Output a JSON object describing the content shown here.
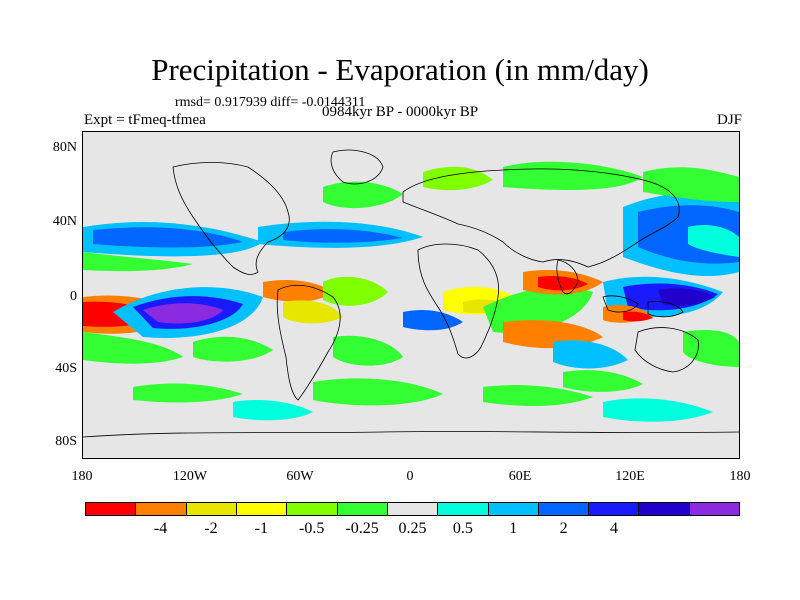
{
  "title": "Precipitation - Evaporation (in mm/day)",
  "stats": "rmsd= 0.917939 diff= -0.0144311",
  "expt": "Expt = tFmeq-tfmea",
  "period": "0984kyr BP - 0000kyr BP",
  "season": "DJF",
  "lat_labels": [
    "80N",
    "40N",
    "0",
    "40S",
    "80S"
  ],
  "lon_labels": [
    "180",
    "120W",
    "60W",
    "0",
    "60E",
    "120E",
    "180"
  ],
  "colorbar": {
    "colors": [
      "#ff0000",
      "#ff8000",
      "#e6e600",
      "#ffff00",
      "#80ff00",
      "#33ff33",
      "#e6e6e6",
      "#00ffdd",
      "#00c0ff",
      "#0066ff",
      "#1a1aff",
      "#2200cc",
      "#8a2be2"
    ],
    "labels": [
      "-4",
      "-2",
      "-1",
      "-0.5",
      "-0.25",
      "0.25",
      "0.5",
      "1",
      "2",
      "4"
    ]
  }
}
